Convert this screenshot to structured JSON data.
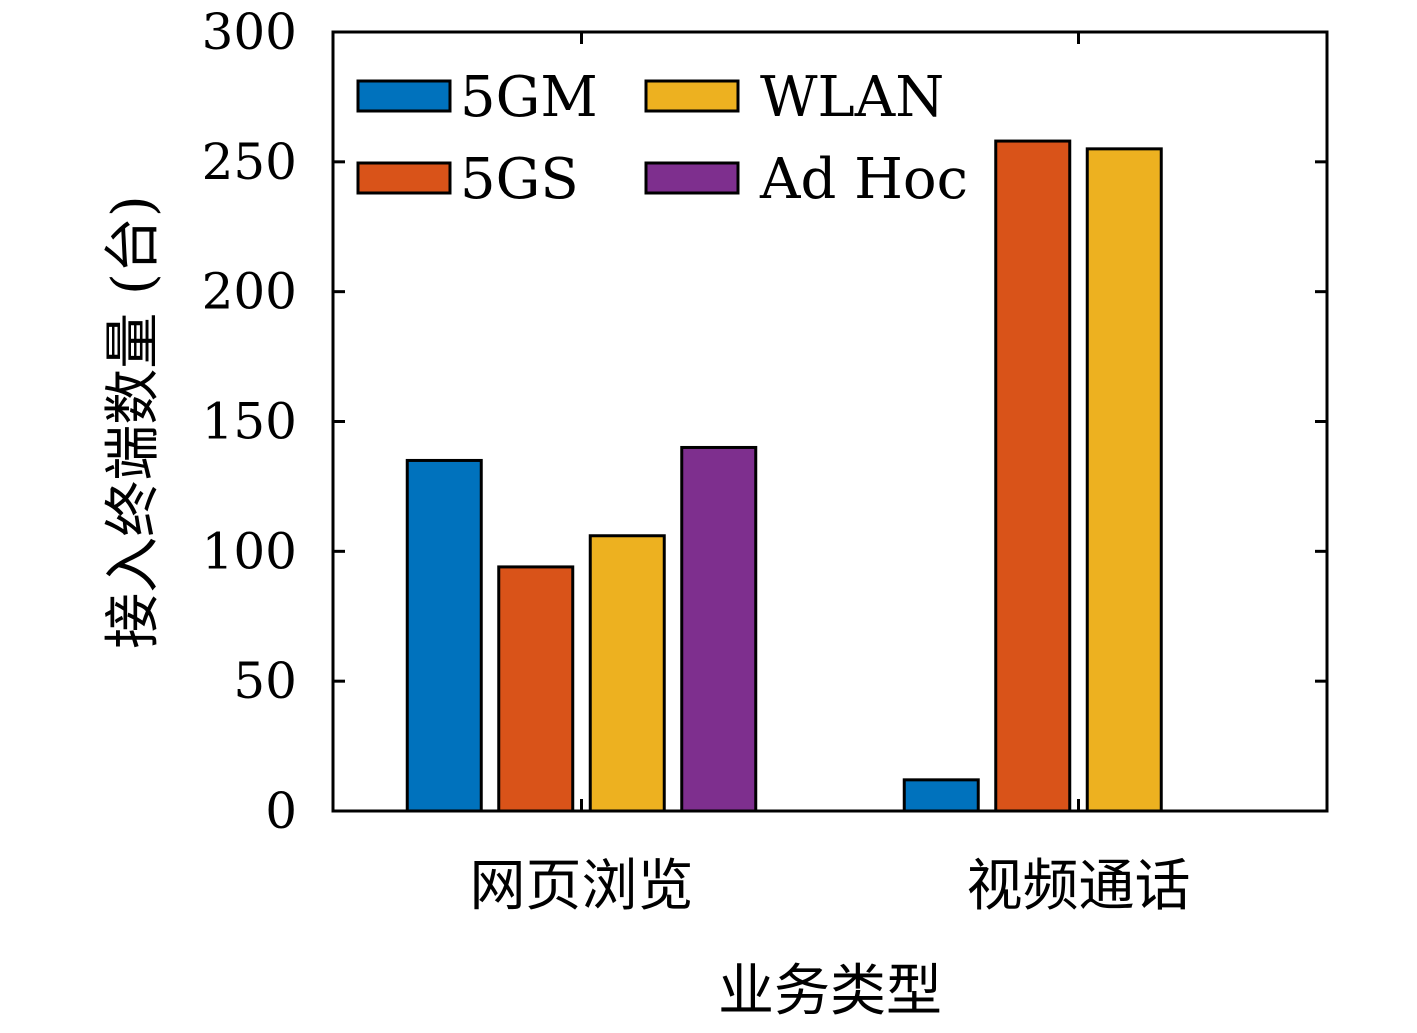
{
  "chart_data": {
    "type": "bar",
    "title": "",
    "xlabel": "业务类型",
    "ylabel": "接入终端数量 (台)",
    "categories": [
      "网页浏览",
      "视频通话"
    ],
    "series": [
      {
        "name": "5GM",
        "values": [
          135,
          12
        ],
        "color": "#0072BD"
      },
      {
        "name": "5GS",
        "values": [
          94,
          258
        ],
        "color": "#D95319"
      },
      {
        "name": "WLAN",
        "values": [
          106,
          255
        ],
        "color": "#EDB120"
      },
      {
        "name": "Ad Hoc",
        "values": [
          140,
          0
        ],
        "color": "#7E2F8E"
      }
    ],
    "ylim": [
      0,
      300
    ],
    "yticks": [
      "0",
      "50",
      "100",
      "150",
      "200",
      "250",
      "300"
    ],
    "legend_position": "top-left",
    "grid": false
  }
}
